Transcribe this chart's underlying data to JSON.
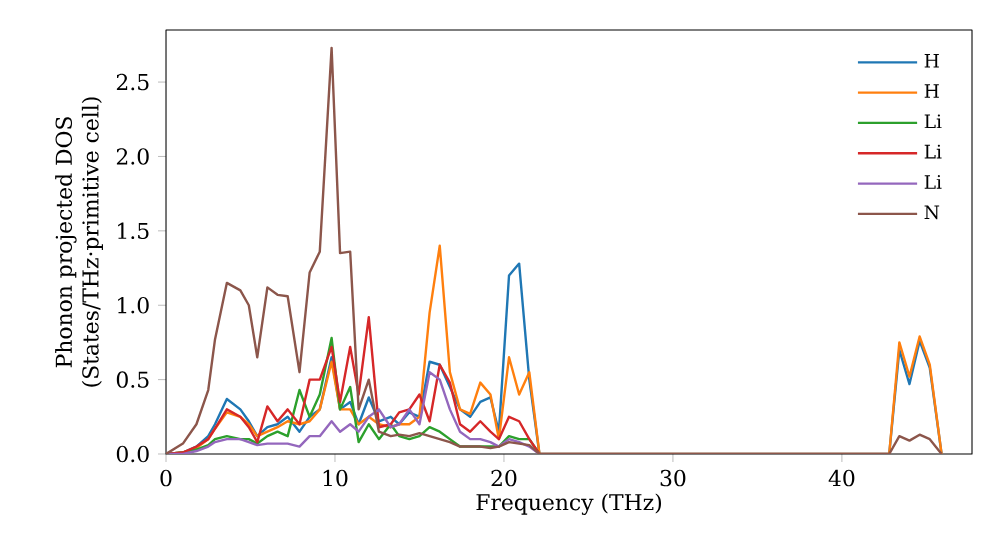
{
  "chart_data": {
    "type": "line",
    "xlabel": "Frequency (THz)",
    "ylabel": "Phonon projected DOS\n(States/THz·primitive cell)",
    "x": [
      0,
      1,
      1.8,
      2.5,
      2.9,
      3.6,
      4.4,
      4.9,
      5.4,
      6,
      6.6,
      7.2,
      7.9,
      8.5,
      9.1,
      9.8,
      10.3,
      10.9,
      11.4,
      12,
      12.6,
      13.3,
      13.8,
      14.4,
      15,
      15.6,
      16.2,
      16.8,
      17.4,
      18,
      18.6,
      19.2,
      19.7,
      20.3,
      20.9,
      21.5,
      22.1,
      42.8,
      43.4,
      44,
      44.6,
      45.2,
      45.9
    ],
    "series": [
      {
        "name": "H",
        "color": "#1f77b4",
        "values": [
          0,
          0.01,
          0.05,
          0.12,
          0.2,
          0.37,
          0.3,
          0.22,
          0.12,
          0.18,
          0.2,
          0.25,
          0.15,
          0.25,
          0.3,
          0.65,
          0.3,
          0.35,
          0.2,
          0.38,
          0.22,
          0.25,
          0.2,
          0.28,
          0.25,
          0.62,
          0.6,
          0.45,
          0.3,
          0.25,
          0.35,
          0.38,
          0.15,
          1.2,
          1.28,
          0.5,
          0,
          0,
          0.7,
          0.47,
          0.76,
          0.58,
          0
        ]
      },
      {
        "name": "H",
        "color": "#ff7f0e",
        "values": [
          0,
          0.01,
          0.04,
          0.1,
          0.17,
          0.28,
          0.25,
          0.2,
          0.12,
          0.15,
          0.18,
          0.22,
          0.2,
          0.22,
          0.3,
          0.62,
          0.3,
          0.3,
          0.2,
          0.25,
          0.2,
          0.18,
          0.2,
          0.2,
          0.25,
          0.95,
          1.4,
          0.55,
          0.3,
          0.27,
          0.48,
          0.4,
          0.1,
          0.65,
          0.4,
          0.55,
          0,
          0,
          0.75,
          0.52,
          0.79,
          0.6,
          0
        ]
      },
      {
        "name": "Li",
        "color": "#2ca02c",
        "values": [
          0,
          0.01,
          0.03,
          0.06,
          0.1,
          0.12,
          0.1,
          0.1,
          0.07,
          0.12,
          0.15,
          0.12,
          0.43,
          0.25,
          0.4,
          0.78,
          0.3,
          0.45,
          0.08,
          0.2,
          0.1,
          0.2,
          0.12,
          0.1,
          0.12,
          0.18,
          0.15,
          0.1,
          0.05,
          0.05,
          0.05,
          0.05,
          0.05,
          0.12,
          0.1,
          0.1,
          0,
          null,
          null,
          null,
          null,
          null,
          null
        ]
      },
      {
        "name": "Li",
        "color": "#d62728",
        "values": [
          0,
          0.01,
          0.05,
          0.1,
          0.17,
          0.3,
          0.25,
          0.18,
          0.08,
          0.32,
          0.22,
          0.3,
          0.2,
          0.5,
          0.5,
          0.72,
          0.35,
          0.72,
          0.4,
          0.92,
          0.18,
          0.2,
          0.28,
          0.3,
          0.4,
          0.22,
          0.6,
          0.48,
          0.2,
          0.15,
          0.22,
          0.15,
          0.1,
          0.25,
          0.22,
          0.1,
          0,
          null,
          null,
          null,
          null,
          null,
          null
        ]
      },
      {
        "name": "Li",
        "color": "#9467bd",
        "values": [
          0,
          0,
          0.02,
          0.05,
          0.08,
          0.1,
          0.1,
          0.08,
          0.06,
          0.07,
          0.07,
          0.07,
          0.05,
          0.12,
          0.12,
          0.22,
          0.15,
          0.2,
          0.15,
          0.25,
          0.3,
          0.18,
          0.2,
          0.3,
          0.2,
          0.55,
          0.5,
          0.3,
          0.15,
          0.1,
          0.1,
          0.08,
          0.05,
          0.1,
          0.08,
          0.05,
          0,
          null,
          null,
          null,
          null,
          null,
          null
        ]
      },
      {
        "name": "N",
        "color": "#8c564b",
        "values": [
          0,
          0.07,
          0.2,
          0.43,
          0.77,
          1.15,
          1.1,
          1.0,
          0.65,
          1.12,
          1.07,
          1.06,
          0.55,
          1.22,
          1.36,
          2.73,
          1.35,
          1.36,
          0.3,
          0.5,
          0.15,
          0.12,
          0.13,
          0.12,
          0.14,
          0.12,
          0.1,
          0.08,
          0.05,
          0.05,
          0.05,
          0.04,
          0.05,
          0.08,
          0.07,
          0.06,
          0,
          0,
          0.12,
          0.09,
          0.13,
          0.1,
          0
        ]
      }
    ],
    "xlim": [
      0,
      47.7
    ],
    "ylim": [
      0,
      2.85
    ],
    "xticks": [
      0,
      10,
      20,
      30,
      40
    ],
    "yticks": [
      {
        "value": 0,
        "label": "0.0"
      },
      {
        "value": 0.5,
        "label": "0.5"
      },
      {
        "value": 1,
        "label": "1.0"
      },
      {
        "value": 1.5,
        "label": "1.5"
      },
      {
        "value": 2,
        "label": "2.0"
      },
      {
        "value": 2.5,
        "label": "2.5"
      }
    ],
    "legend": "top right",
    "grid": false,
    "marker": "none",
    "line_style": "solid"
  }
}
